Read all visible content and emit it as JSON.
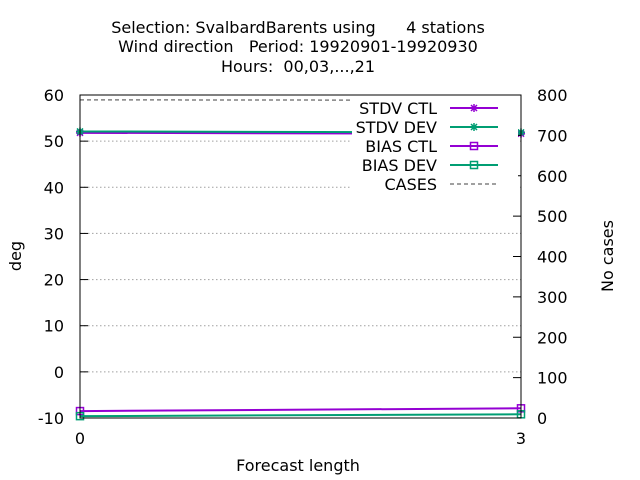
{
  "chart_data": {
    "type": "line",
    "title_lines": [
      "Selection: SvalbardBarents using      4 stations",
      "Wind direction   Period: 19920901-19920930",
      "Hours:  00,03,...,21"
    ],
    "xlabel": "Forecast length",
    "ylabel": "deg",
    "y2label": "No cases",
    "xlim": [
      0,
      3
    ],
    "ylim": [
      -10,
      60
    ],
    "y2lim": [
      0,
      800
    ],
    "x_ticks": [
      "0",
      "3"
    ],
    "y_ticks": [
      "-10",
      "0",
      "10",
      "20",
      "30",
      "40",
      "50",
      "60"
    ],
    "y2_ticks": [
      "0",
      "100",
      "200",
      "300",
      "400",
      "500",
      "600",
      "700",
      "800"
    ],
    "grid": "horizontal dotted",
    "legend_position": "top-right",
    "series": [
      {
        "name": "STDV CTL",
        "axis": "y",
        "color": "#9400d3",
        "marker": "star",
        "dash": "solid",
        "x": [
          0,
          3
        ],
        "values": [
          51.8,
          51.6
        ]
      },
      {
        "name": "STDV DEV",
        "axis": "y",
        "color": "#009e73",
        "marker": "star",
        "dash": "solid",
        "x": [
          0,
          3
        ],
        "values": [
          52.1,
          51.9
        ]
      },
      {
        "name": "BIAS CTL",
        "axis": "y",
        "color": "#9400d3",
        "marker": "square",
        "dash": "solid",
        "x": [
          0,
          3
        ],
        "values": [
          -8.5,
          -7.9
        ]
      },
      {
        "name": "BIAS DEV",
        "axis": "y",
        "color": "#009e73",
        "marker": "square",
        "dash": "solid",
        "x": [
          0,
          3
        ],
        "values": [
          -9.6,
          -9.2
        ]
      },
      {
        "name": "CASES",
        "axis": "y2",
        "color": "#808080",
        "marker": "none",
        "dash": "dashed",
        "x": [
          0,
          3
        ],
        "values": [
          788,
          787
        ]
      }
    ]
  }
}
